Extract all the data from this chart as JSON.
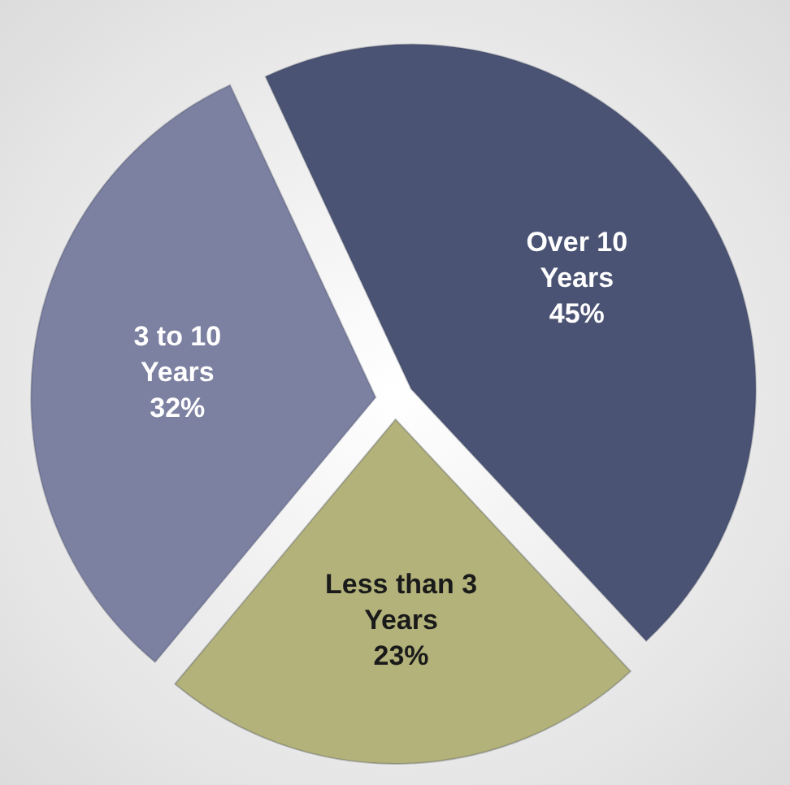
{
  "chart_data": {
    "type": "pie",
    "categories": [
      "Over 10 Years",
      "Less than 3 Years",
      "3 to 10 Years"
    ],
    "values": [
      45,
      23,
      32
    ],
    "colors": [
      "#4b5374",
      "#b3b27a",
      "#7c80a1"
    ],
    "value_labels": [
      "45%",
      "23%",
      "32%"
    ]
  }
}
